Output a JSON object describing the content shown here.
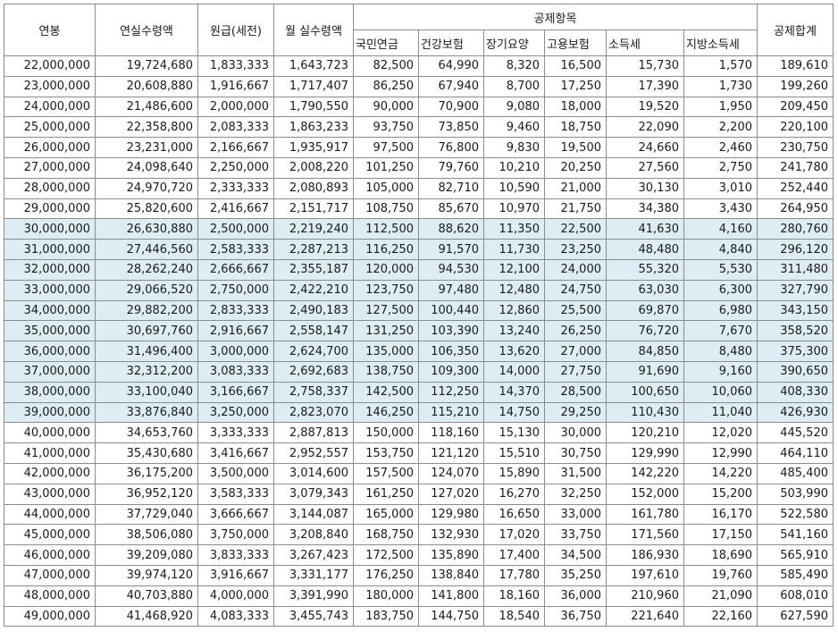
{
  "headers": {
    "salary": "연봉",
    "annual_net": "연실수령액",
    "monthly_gross": "원급(세전)",
    "monthly_net": "월 실수령액",
    "deduction_group": "공제항목",
    "pension": "국민연금",
    "health": "건강보험",
    "longterm_care": "장기요양",
    "employment": "고용보험",
    "income_tax": "소득세",
    "local_tax": "지방소득세",
    "total_deduction": "공제합계"
  },
  "highlight_color": "#ddedf3",
  "rows": [
    {
      "salary": "22,000,000",
      "annual_net": "19,724,680",
      "monthly_gross": "1,833,333",
      "monthly_net": "1,643,723",
      "pension": "82,500",
      "health": "64,990",
      "longterm_care": "8,320",
      "employment": "16,500",
      "income_tax": "15,730",
      "local_tax": "1,570",
      "total": "189,610",
      "highlighted": false
    },
    {
      "salary": "23,000,000",
      "annual_net": "20,608,880",
      "monthly_gross": "1,916,667",
      "monthly_net": "1,717,407",
      "pension": "86,250",
      "health": "67,940",
      "longterm_care": "8,700",
      "employment": "17,250",
      "income_tax": "17,390",
      "local_tax": "1,730",
      "total": "199,260",
      "highlighted": false
    },
    {
      "salary": "24,000,000",
      "annual_net": "21,486,600",
      "monthly_gross": "2,000,000",
      "monthly_net": "1,790,550",
      "pension": "90,000",
      "health": "70,900",
      "longterm_care": "9,080",
      "employment": "18,000",
      "income_tax": "19,520",
      "local_tax": "1,950",
      "total": "209,450",
      "highlighted": false
    },
    {
      "salary": "25,000,000",
      "annual_net": "22,358,800",
      "monthly_gross": "2,083,333",
      "monthly_net": "1,863,233",
      "pension": "93,750",
      "health": "73,850",
      "longterm_care": "9,460",
      "employment": "18,750",
      "income_tax": "22,090",
      "local_tax": "2,200",
      "total": "220,100",
      "highlighted": false
    },
    {
      "salary": "26,000,000",
      "annual_net": "23,231,000",
      "monthly_gross": "2,166,667",
      "monthly_net": "1,935,917",
      "pension": "97,500",
      "health": "76,800",
      "longterm_care": "9,830",
      "employment": "19,500",
      "income_tax": "24,660",
      "local_tax": "2,460",
      "total": "230,750",
      "highlighted": false
    },
    {
      "salary": "27,000,000",
      "annual_net": "24,098,640",
      "monthly_gross": "2,250,000",
      "monthly_net": "2,008,220",
      "pension": "101,250",
      "health": "79,760",
      "longterm_care": "10,210",
      "employment": "20,250",
      "income_tax": "27,560",
      "local_tax": "2,750",
      "total": "241,780",
      "highlighted": false
    },
    {
      "salary": "28,000,000",
      "annual_net": "24,970,720",
      "monthly_gross": "2,333,333",
      "monthly_net": "2,080,893",
      "pension": "105,000",
      "health": "82,710",
      "longterm_care": "10,590",
      "employment": "21,000",
      "income_tax": "30,130",
      "local_tax": "3,010",
      "total": "252,440",
      "highlighted": false
    },
    {
      "salary": "29,000,000",
      "annual_net": "25,820,600",
      "monthly_gross": "2,416,667",
      "monthly_net": "2,151,717",
      "pension": "108,750",
      "health": "85,670",
      "longterm_care": "10,970",
      "employment": "21,750",
      "income_tax": "34,380",
      "local_tax": "3,430",
      "total": "264,950",
      "highlighted": false
    },
    {
      "salary": "30,000,000",
      "annual_net": "26,630,880",
      "monthly_gross": "2,500,000",
      "monthly_net": "2,219,240",
      "pension": "112,500",
      "health": "88,620",
      "longterm_care": "11,350",
      "employment": "22,500",
      "income_tax": "41,630",
      "local_tax": "4,160",
      "total": "280,760",
      "highlighted": true
    },
    {
      "salary": "31,000,000",
      "annual_net": "27,446,560",
      "monthly_gross": "2,583,333",
      "monthly_net": "2,287,213",
      "pension": "116,250",
      "health": "91,570",
      "longterm_care": "11,730",
      "employment": "23,250",
      "income_tax": "48,480",
      "local_tax": "4,840",
      "total": "296,120",
      "highlighted": true
    },
    {
      "salary": "32,000,000",
      "annual_net": "28,262,240",
      "monthly_gross": "2,666,667",
      "monthly_net": "2,355,187",
      "pension": "120,000",
      "health": "94,530",
      "longterm_care": "12,100",
      "employment": "24,000",
      "income_tax": "55,320",
      "local_tax": "5,530",
      "total": "311,480",
      "highlighted": true
    },
    {
      "salary": "33,000,000",
      "annual_net": "29,066,520",
      "monthly_gross": "2,750,000",
      "monthly_net": "2,422,210",
      "pension": "123,750",
      "health": "97,480",
      "longterm_care": "12,480",
      "employment": "24,750",
      "income_tax": "63,030",
      "local_tax": "6,300",
      "total": "327,790",
      "highlighted": true
    },
    {
      "salary": "34,000,000",
      "annual_net": "29,882,200",
      "monthly_gross": "2,833,333",
      "monthly_net": "2,490,183",
      "pension": "127,500",
      "health": "100,440",
      "longterm_care": "12,860",
      "employment": "25,500",
      "income_tax": "69,870",
      "local_tax": "6,980",
      "total": "343,150",
      "highlighted": true
    },
    {
      "salary": "35,000,000",
      "annual_net": "30,697,760",
      "monthly_gross": "2,916,667",
      "monthly_net": "2,558,147",
      "pension": "131,250",
      "health": "103,390",
      "longterm_care": "13,240",
      "employment": "26,250",
      "income_tax": "76,720",
      "local_tax": "7,670",
      "total": "358,520",
      "highlighted": true
    },
    {
      "salary": "36,000,000",
      "annual_net": "31,496,400",
      "monthly_gross": "3,000,000",
      "monthly_net": "2,624,700",
      "pension": "135,000",
      "health": "106,350",
      "longterm_care": "13,620",
      "employment": "27,000",
      "income_tax": "84,850",
      "local_tax": "8,480",
      "total": "375,300",
      "highlighted": true
    },
    {
      "salary": "37,000,000",
      "annual_net": "32,312,200",
      "monthly_gross": "3,083,333",
      "monthly_net": "2,692,683",
      "pension": "138,750",
      "health": "109,300",
      "longterm_care": "14,000",
      "employment": "27,750",
      "income_tax": "91,690",
      "local_tax": "9,160",
      "total": "390,650",
      "highlighted": true
    },
    {
      "salary": "38,000,000",
      "annual_net": "33,100,040",
      "monthly_gross": "3,166,667",
      "monthly_net": "2,758,337",
      "pension": "142,500",
      "health": "112,250",
      "longterm_care": "14,370",
      "employment": "28,500",
      "income_tax": "100,650",
      "local_tax": "10,060",
      "total": "408,330",
      "highlighted": true
    },
    {
      "salary": "39,000,000",
      "annual_net": "33,876,840",
      "monthly_gross": "3,250,000",
      "monthly_net": "2,823,070",
      "pension": "146,250",
      "health": "115,210",
      "longterm_care": "14,750",
      "employment": "29,250",
      "income_tax": "110,430",
      "local_tax": "11,040",
      "total": "426,930",
      "highlighted": true
    },
    {
      "salary": "40,000,000",
      "annual_net": "34,653,760",
      "monthly_gross": "3,333,333",
      "monthly_net": "2,887,813",
      "pension": "150,000",
      "health": "118,160",
      "longterm_care": "15,130",
      "employment": "30,000",
      "income_tax": "120,210",
      "local_tax": "12,020",
      "total": "445,520",
      "highlighted": false
    },
    {
      "salary": "41,000,000",
      "annual_net": "35,430,680",
      "monthly_gross": "3,416,667",
      "monthly_net": "2,952,557",
      "pension": "153,750",
      "health": "121,120",
      "longterm_care": "15,510",
      "employment": "30,750",
      "income_tax": "129,990",
      "local_tax": "12,990",
      "total": "464,110",
      "highlighted": false
    },
    {
      "salary": "42,000,000",
      "annual_net": "36,175,200",
      "monthly_gross": "3,500,000",
      "monthly_net": "3,014,600",
      "pension": "157,500",
      "health": "124,070",
      "longterm_care": "15,890",
      "employment": "31,500",
      "income_tax": "142,220",
      "local_tax": "14,220",
      "total": "485,400",
      "highlighted": false
    },
    {
      "salary": "43,000,000",
      "annual_net": "36,952,120",
      "monthly_gross": "3,583,333",
      "monthly_net": "3,079,343",
      "pension": "161,250",
      "health": "127,020",
      "longterm_care": "16,270",
      "employment": "32,250",
      "income_tax": "152,000",
      "local_tax": "15,200",
      "total": "503,990",
      "highlighted": false
    },
    {
      "salary": "44,000,000",
      "annual_net": "37,729,040",
      "monthly_gross": "3,666,667",
      "monthly_net": "3,144,087",
      "pension": "165,000",
      "health": "129,980",
      "longterm_care": "16,650",
      "employment": "33,000",
      "income_tax": "161,780",
      "local_tax": "16,170",
      "total": "522,580",
      "highlighted": false
    },
    {
      "salary": "45,000,000",
      "annual_net": "38,506,080",
      "monthly_gross": "3,750,000",
      "monthly_net": "3,208,840",
      "pension": "168,750",
      "health": "132,930",
      "longterm_care": "17,020",
      "employment": "33,750",
      "income_tax": "171,560",
      "local_tax": "17,150",
      "total": "541,160",
      "highlighted": false
    },
    {
      "salary": "46,000,000",
      "annual_net": "39,209,080",
      "monthly_gross": "3,833,333",
      "monthly_net": "3,267,423",
      "pension": "172,500",
      "health": "135,890",
      "longterm_care": "17,400",
      "employment": "34,500",
      "income_tax": "186,930",
      "local_tax": "18,690",
      "total": "565,910",
      "highlighted": false
    },
    {
      "salary": "47,000,000",
      "annual_net": "39,974,120",
      "monthly_gross": "3,916,667",
      "monthly_net": "3,331,177",
      "pension": "176,250",
      "health": "138,840",
      "longterm_care": "17,780",
      "employment": "35,250",
      "income_tax": "197,610",
      "local_tax": "19,760",
      "total": "585,490",
      "highlighted": false
    },
    {
      "salary": "48,000,000",
      "annual_net": "40,703,880",
      "monthly_gross": "4,000,000",
      "monthly_net": "3,391,990",
      "pension": "180,000",
      "health": "141,800",
      "longterm_care": "18,160",
      "employment": "36,000",
      "income_tax": "210,960",
      "local_tax": "21,090",
      "total": "608,010",
      "highlighted": false
    },
    {
      "salary": "49,000,000",
      "annual_net": "41,468,920",
      "monthly_gross": "4,083,333",
      "monthly_net": "3,455,743",
      "pension": "183,750",
      "health": "144,750",
      "longterm_care": "18,540",
      "employment": "36,750",
      "income_tax": "221,640",
      "local_tax": "22,160",
      "total": "627,590",
      "highlighted": false
    }
  ]
}
